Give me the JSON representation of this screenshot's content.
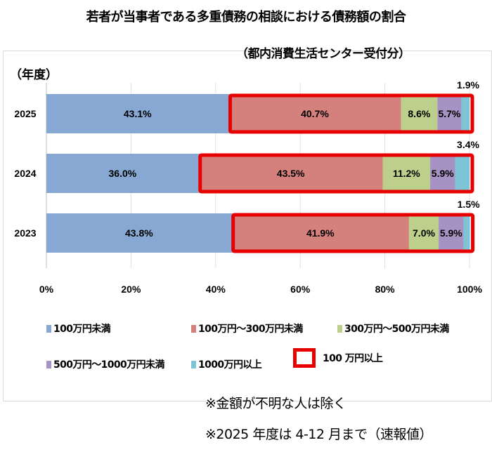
{
  "chart_data": {
    "type": "bar",
    "orientation": "horizontal",
    "stacked": true,
    "title": "若者が当事者である多重債務の相談における債務額の割合",
    "subtitle": "（都内消費生活センター受付分）",
    "ylabel": "（年度）",
    "xlabel": "",
    "categories": [
      "2025",
      "2024",
      "2023"
    ],
    "series": [
      {
        "name": "100万円未満",
        "color": "#86a8d2",
        "values": [
          43.1,
          36.0,
          43.8
        ],
        "labels": [
          "43.1%",
          "36.0%",
          "43.8%"
        ]
      },
      {
        "name": "100万円～300万円未満",
        "color": "#d4807d",
        "values": [
          40.7,
          43.5,
          41.9
        ],
        "labels": [
          "40.7%",
          "43.5%",
          "41.9%"
        ]
      },
      {
        "name": "300万円～500万円未満",
        "color": "#bcd08c",
        "values": [
          8.6,
          11.2,
          7.0
        ],
        "labels": [
          "8.6%",
          "11.2%",
          "7.0%"
        ]
      },
      {
        "name": "500万円～1000万円未満",
        "color": "#a793c3",
        "values": [
          5.7,
          5.9,
          5.9
        ],
        "labels": [
          "5.7%",
          "5.9%",
          "5.9%"
        ]
      },
      {
        "name": "1000万円以上",
        "color": "#7dc5d6",
        "values": [
          1.9,
          3.4,
          1.5
        ],
        "labels": [
          "1.9%",
          "3.4%",
          "1.5%"
        ]
      }
    ],
    "highlight": {
      "name": "100 万円以上",
      "color": "#e60000"
    },
    "xticks": [
      "0%",
      "20%",
      "40%",
      "60%",
      "80%",
      "100%"
    ],
    "xlim": [
      0,
      100
    ],
    "grid": true,
    "legend": "bottom"
  },
  "notes": [
    "※金額が不明な人は除く",
    "※2025 年度は 4-12 月まで（速報値）"
  ]
}
